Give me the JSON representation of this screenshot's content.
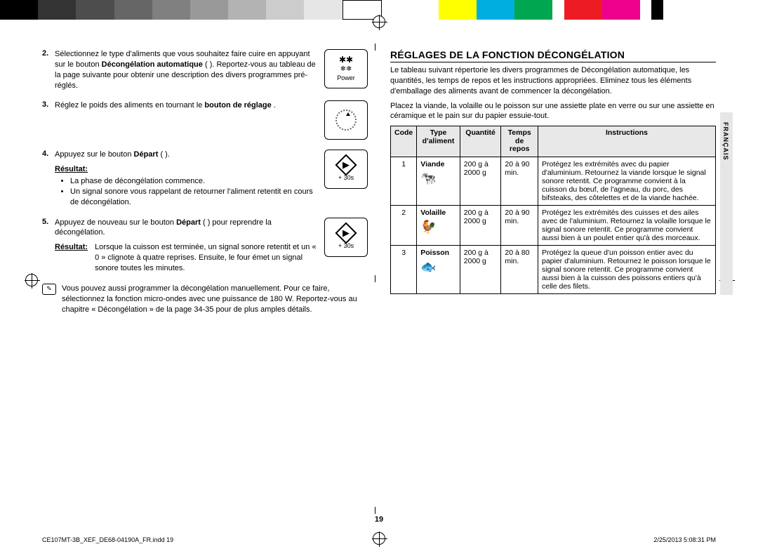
{
  "colorbar": [
    "#000000",
    "#333333",
    "#4d4d4d",
    "#666666",
    "#808080",
    "#999999",
    "#b3b3b3",
    "#cccccc",
    "#e6e6e6",
    "#ffffff",
    "#000000",
    "#000000",
    "#ffff00",
    "#00a0c8",
    "#00a650",
    "#ed1c24",
    "#ec008c",
    "#ffffff",
    "#000000"
  ],
  "left": {
    "step2": {
      "num": "2.",
      "text_a": "Sélectionnez le type d'aliments que vous souhaitez faire cuire en appuyant sur le bouton ",
      "bold_a": "Décongélation automatique",
      "text_b": " ( ). Reportez-vous au tableau de la page suivante pour obtenir une description des divers programmes pré-réglés.",
      "icon_top": "✱✱",
      "icon_mid": "❄❄",
      "icon_label": "Power"
    },
    "step3": {
      "num": "3.",
      "text_a": "Réglez le poids des aliments en tournant le ",
      "bold_a": "bouton de réglage",
      "text_b": "."
    },
    "step4": {
      "num": "4.",
      "text_a": "Appuyez sur le bouton ",
      "bold_a": "Départ",
      "text_b": " ( ).",
      "res_label": "Résultat:",
      "b1": "La phase de décongélation commence.",
      "b2": "Un signal sonore vous rappelant de retourner l'aliment retentit en cours de décongélation.",
      "icon_label": "+ 30s"
    },
    "step5": {
      "num": "5.",
      "text_a": "Appuyez de nouveau sur le bouton ",
      "bold_a": "Départ",
      "text_b": " ( ) pour reprendre la décongélation.",
      "res_label": "Résultat:",
      "res_text": "Lorsque la cuisson est terminée, un signal sonore retentit et un « 0 » clignote à quatre reprises. Ensuite, le four émet un signal sonore toutes les minutes.",
      "icon_label": "+ 30s"
    },
    "note": "Vous pouvez aussi programmer la décongélation manuellement. Pour ce faire, sélectionnez la fonction micro-ondes avec une puissance de 180 W. Reportez-vous au chapitre « Décongélation » de la page 34-35 pour de plus amples détails.",
    "note_icon": "✎"
  },
  "right": {
    "title": "RÉGLAGES DE LA FONCTION DÉCONGÉLATION",
    "intro1": "Le tableau suivant répertorie les divers programmes de Décongélation automatique, les quantités, les temps de repos et les instructions appropriées. Eliminez tous les éléments d'emballage des aliments avant de commencer la décongélation.",
    "intro2": "Placez la viande, la volaille ou le poisson sur une assiette plate en verre ou sur une assiette en céramique et le pain sur du papier essuie-tout.",
    "table": {
      "headers": [
        "Code",
        "Type d'aliment",
        "Quantité",
        "Temps de repos",
        "Instructions"
      ],
      "rows": [
        {
          "code": "1",
          "type": "Viande",
          "icon": "🐄",
          "qty": "200 g à 2000 g",
          "rest": "20 à 90 min.",
          "instr": "Protégez les extrémités avec du papier d'aluminium. Retournez la viande lorsque le signal sonore retentit. Ce programme convient à la cuisson du bœuf, de l'agneau, du porc, des bifsteaks, des côtelettes et de la viande hachée."
        },
        {
          "code": "2",
          "type": "Volaille",
          "icon": "🐓",
          "qty": "200 g à 2000 g",
          "rest": "20 à 90 min.",
          "instr": "Protégez les extrémités des cuisses et des ailes avec de l'aluminium. Retournez la volaille lorsque le signal sonore retentit. Ce programme convient aussi bien à un poulet entier qu'à des morceaux."
        },
        {
          "code": "3",
          "type": "Poisson",
          "icon": "🐟",
          "qty": "200 g à 2000 g",
          "rest": "20 à 80 min.",
          "instr": "Protégez la queue d'un poisson entier avec du papier d'aluminium. Retournez le poisson lorsque le signal sonore retentit. Ce programme convient aussi bien à la cuisson des poissons entiers qu'à celle des filets."
        }
      ]
    }
  },
  "sidetab": "FRANÇAIS",
  "pagenum": "19",
  "footer_left": "CE107MT-3B_XEF_DE68-04190A_FR.indd   19",
  "footer_right": "2/25/2013   5:08:31 PM"
}
